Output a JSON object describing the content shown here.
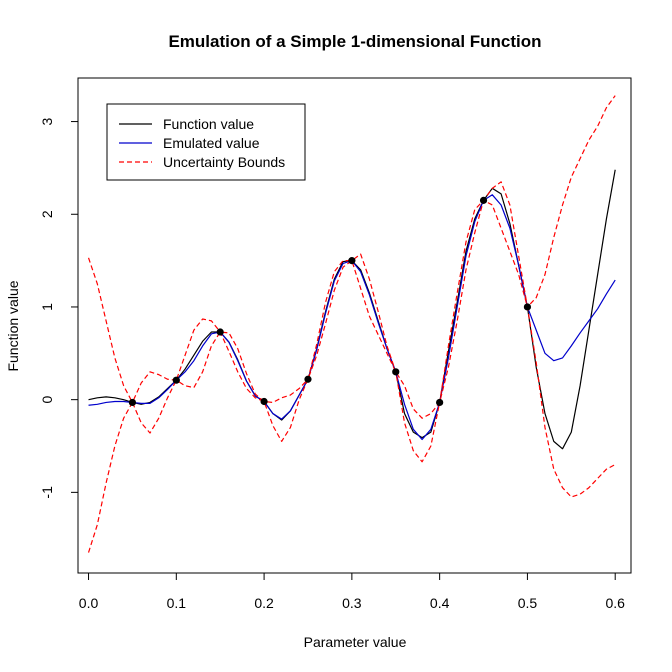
{
  "chart_data": {
    "type": "line",
    "title": "Emulation of a Simple 1-dimensional Function",
    "xlabel": "Parameter value",
    "ylabel": "Function value",
    "xlim": [
      -0.012,
      0.618
    ],
    "ylim": [
      -1.87,
      3.47
    ],
    "x_ticks": [
      0.0,
      0.1,
      0.2,
      0.3,
      0.4,
      0.5,
      0.6
    ],
    "x_tick_labels": [
      "0.0",
      "0.1",
      "0.2",
      "0.3",
      "0.4",
      "0.5",
      "0.6"
    ],
    "y_ticks": [
      -1,
      0,
      1,
      2,
      3
    ],
    "y_tick_labels": [
      "-1",
      "0",
      "1",
      "2",
      "3"
    ],
    "grid": false,
    "legend_position": "top-left",
    "legend": [
      {
        "label": "Function value",
        "color": "#000000",
        "dash": "solid"
      },
      {
        "label": "Emulated value",
        "color": "#0000cc",
        "dash": "solid"
      },
      {
        "label": "Uncertainty Bounds",
        "color": "#ff0000",
        "dash": "dashed"
      }
    ],
    "design_points": {
      "x": [
        0.05,
        0.1,
        0.15,
        0.2,
        0.25,
        0.3,
        0.35,
        0.4,
        0.45,
        0.5
      ],
      "y": [
        -0.03,
        0.21,
        0.73,
        -0.02,
        0.22,
        1.5,
        0.3,
        -0.03,
        2.15,
        1.0
      ]
    },
    "series": [
      {
        "name": "Function value",
        "color": "#000000",
        "dash": "solid",
        "x": [
          0.0,
          0.01,
          0.02,
          0.03,
          0.04,
          0.05,
          0.06,
          0.07,
          0.08,
          0.09,
          0.1,
          0.11,
          0.12,
          0.13,
          0.14,
          0.15,
          0.16,
          0.17,
          0.18,
          0.19,
          0.2,
          0.21,
          0.22,
          0.23,
          0.24,
          0.25,
          0.26,
          0.27,
          0.28,
          0.29,
          0.3,
          0.31,
          0.32,
          0.33,
          0.34,
          0.35,
          0.36,
          0.37,
          0.38,
          0.39,
          0.4,
          0.41,
          0.42,
          0.43,
          0.44,
          0.45,
          0.46,
          0.47,
          0.48,
          0.49,
          0.5,
          0.51,
          0.52,
          0.53,
          0.54,
          0.55,
          0.56,
          0.57,
          0.58,
          0.59,
          0.6
        ],
        "y": [
          0.0,
          0.02,
          0.03,
          0.02,
          0.0,
          -0.03,
          -0.05,
          -0.03,
          0.03,
          0.12,
          0.21,
          0.33,
          0.48,
          0.63,
          0.73,
          0.73,
          0.62,
          0.43,
          0.2,
          0.04,
          -0.02,
          -0.15,
          -0.22,
          -0.12,
          0.05,
          0.22,
          0.55,
          0.95,
          1.3,
          1.49,
          1.5,
          1.4,
          1.15,
          0.85,
          0.55,
          0.3,
          -0.15,
          -0.35,
          -0.41,
          -0.35,
          -0.03,
          0.52,
          1.05,
          1.6,
          1.95,
          2.15,
          2.28,
          2.22,
          1.9,
          1.45,
          1.0,
          0.35,
          -0.15,
          -0.45,
          -0.53,
          -0.35,
          0.15,
          0.75,
          1.35,
          1.95,
          2.48
        ]
      },
      {
        "name": "Emulated value",
        "color": "#0000cc",
        "dash": "solid",
        "x": [
          0.0,
          0.01,
          0.02,
          0.03,
          0.04,
          0.05,
          0.06,
          0.07,
          0.08,
          0.09,
          0.1,
          0.11,
          0.12,
          0.13,
          0.14,
          0.15,
          0.16,
          0.17,
          0.18,
          0.19,
          0.2,
          0.21,
          0.22,
          0.23,
          0.24,
          0.25,
          0.26,
          0.27,
          0.28,
          0.29,
          0.3,
          0.31,
          0.32,
          0.33,
          0.34,
          0.35,
          0.36,
          0.37,
          0.38,
          0.39,
          0.4,
          0.41,
          0.42,
          0.43,
          0.44,
          0.45,
          0.46,
          0.47,
          0.48,
          0.49,
          0.5,
          0.51,
          0.52,
          0.53,
          0.54,
          0.55,
          0.56,
          0.57,
          0.58,
          0.59,
          0.6
        ],
        "y": [
          -0.06,
          -0.05,
          -0.03,
          -0.02,
          -0.02,
          -0.03,
          -0.04,
          -0.04,
          0.02,
          0.11,
          0.21,
          0.3,
          0.42,
          0.58,
          0.71,
          0.73,
          0.62,
          0.42,
          0.2,
          0.04,
          -0.02,
          -0.15,
          -0.21,
          -0.12,
          0.05,
          0.22,
          0.54,
          0.93,
          1.28,
          1.47,
          1.5,
          1.38,
          1.13,
          0.83,
          0.55,
          0.3,
          -0.05,
          -0.32,
          -0.43,
          -0.32,
          -0.03,
          0.45,
          1.0,
          1.55,
          1.92,
          2.15,
          2.21,
          2.1,
          1.85,
          1.45,
          1.0,
          0.75,
          0.5,
          0.42,
          0.45,
          0.58,
          0.72,
          0.85,
          0.98,
          1.14,
          1.29
        ]
      },
      {
        "name": "Uncertainty Bounds",
        "color": "#ff0000",
        "dash": "dashed",
        "x": [
          0.0,
          0.01,
          0.02,
          0.03,
          0.04,
          0.05,
          0.06,
          0.07,
          0.08,
          0.09,
          0.1,
          0.11,
          0.12,
          0.13,
          0.14,
          0.15,
          0.16,
          0.17,
          0.18,
          0.19,
          0.2,
          0.21,
          0.22,
          0.23,
          0.24,
          0.25,
          0.26,
          0.27,
          0.28,
          0.29,
          0.3,
          0.31,
          0.32,
          0.33,
          0.34,
          0.35,
          0.36,
          0.37,
          0.38,
          0.39,
          0.4,
          0.41,
          0.42,
          0.43,
          0.44,
          0.45,
          0.46,
          0.47,
          0.48,
          0.49,
          0.5,
          0.51,
          0.52,
          0.53,
          0.54,
          0.55,
          0.56,
          0.57,
          0.58,
          0.59,
          0.6
        ],
        "y": [
          1.53,
          1.25,
          0.85,
          0.45,
          0.15,
          -0.03,
          -0.25,
          -0.36,
          -0.2,
          0.02,
          0.21,
          0.48,
          0.75,
          0.87,
          0.85,
          0.73,
          0.52,
          0.3,
          0.12,
          0.02,
          -0.02,
          -0.28,
          -0.45,
          -0.3,
          0.0,
          0.22,
          0.48,
          0.82,
          1.18,
          1.43,
          1.5,
          1.57,
          1.3,
          0.95,
          0.58,
          0.3,
          -0.25,
          -0.55,
          -0.67,
          -0.5,
          -0.03,
          0.58,
          1.15,
          1.7,
          2.05,
          2.15,
          2.28,
          2.35,
          2.1,
          1.55,
          1.0,
          1.1,
          1.35,
          1.75,
          2.1,
          2.4,
          2.6,
          2.8,
          2.95,
          3.15,
          3.28
        ]
      },
      {
        "name": "Uncertainty Bounds",
        "color": "#ff0000",
        "dash": "dashed",
        "x": [
          0.0,
          0.01,
          0.02,
          0.03,
          0.04,
          0.05,
          0.06,
          0.07,
          0.08,
          0.09,
          0.1,
          0.11,
          0.12,
          0.13,
          0.14,
          0.15,
          0.16,
          0.17,
          0.18,
          0.19,
          0.2,
          0.21,
          0.22,
          0.23,
          0.24,
          0.25,
          0.26,
          0.27,
          0.28,
          0.29,
          0.3,
          0.31,
          0.32,
          0.33,
          0.34,
          0.35,
          0.36,
          0.37,
          0.38,
          0.39,
          0.4,
          0.41,
          0.42,
          0.43,
          0.44,
          0.45,
          0.46,
          0.47,
          0.48,
          0.49,
          0.5,
          0.51,
          0.52,
          0.53,
          0.54,
          0.55,
          0.56,
          0.57,
          0.58,
          0.59,
          0.6
        ],
        "y": [
          -1.65,
          -1.35,
          -0.9,
          -0.5,
          -0.2,
          -0.03,
          0.18,
          0.3,
          0.27,
          0.22,
          0.21,
          0.15,
          0.13,
          0.3,
          0.58,
          0.73,
          0.72,
          0.55,
          0.28,
          0.06,
          -0.02,
          -0.03,
          0.02,
          0.05,
          0.12,
          0.22,
          0.6,
          1.05,
          1.38,
          1.5,
          1.5,
          1.2,
          0.9,
          0.7,
          0.5,
          0.3,
          0.15,
          -0.1,
          -0.2,
          -0.15,
          -0.03,
          0.35,
          0.85,
          1.4,
          1.8,
          2.15,
          2.1,
          1.85,
          1.6,
          1.35,
          1.0,
          0.4,
          -0.3,
          -0.75,
          -0.95,
          -1.05,
          -1.02,
          -0.95,
          -0.85,
          -0.75,
          -0.7
        ]
      }
    ]
  }
}
